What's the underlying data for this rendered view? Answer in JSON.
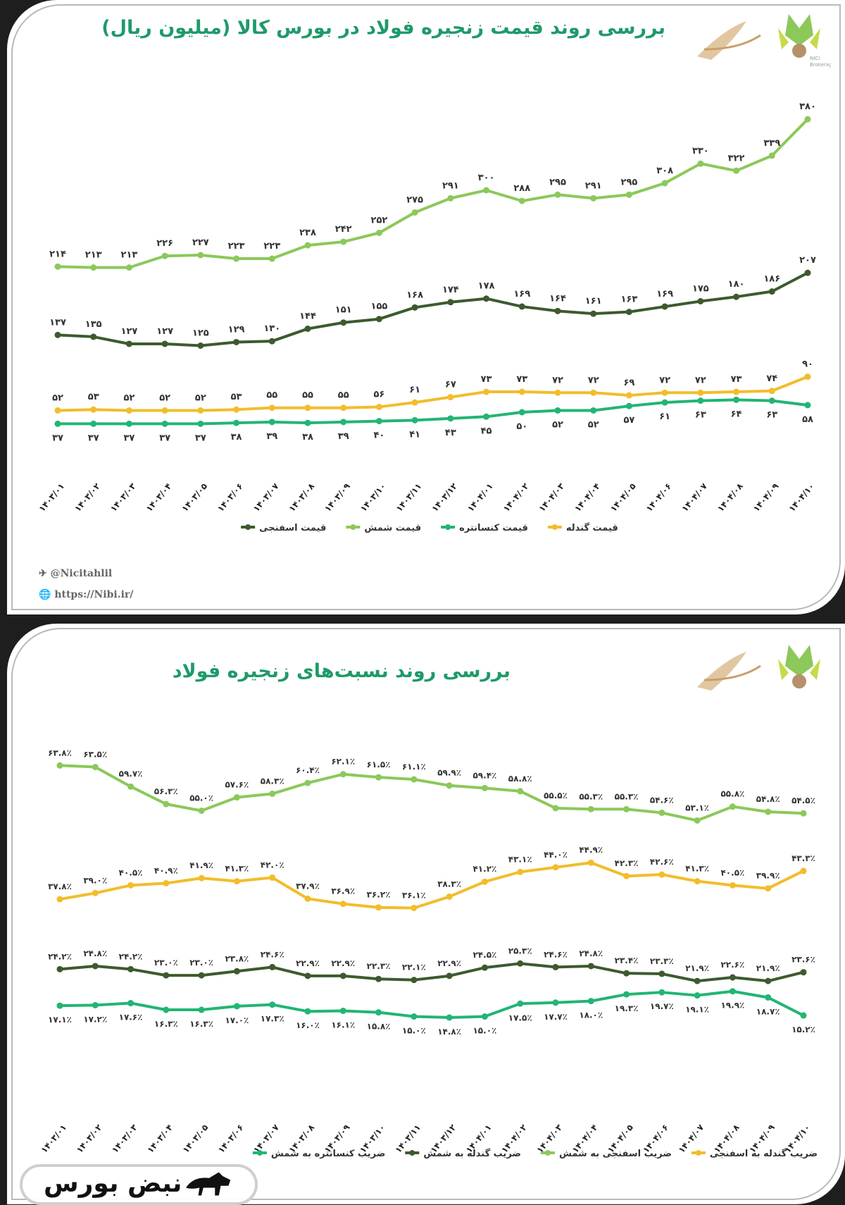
{
  "colors": {
    "title": "#1f9a6a",
    "sponge": "#3d5a2e",
    "billet": "#8cc85a",
    "concentrate": "#22b573",
    "pellet": "#f2bd2c"
  },
  "footer": {
    "telegram": "@Nicitahlil",
    "website": "https://Nibi.ir/"
  },
  "overlay": {
    "brand": "نبض بورس"
  },
  "logo_text": [
    "NICI",
    "Brokerage"
  ],
  "chart_data": [
    {
      "type": "line",
      "title": "بررسی روند قیمت زنجیره فولاد در بورس کالا (میلیون ریال)",
      "categories": [
        "۱۴۰۳/۰۱",
        "۱۴۰۳/۰۲",
        "۱۴۰۳/۰۳",
        "۱۴۰۳/۰۴",
        "۱۴۰۳/۰۵",
        "۱۴۰۳/۰۶",
        "۱۴۰۳/۰۷",
        "۱۴۰۳/۰۸",
        "۱۴۰۳/۰۹",
        "۱۴۰۳/۱۰",
        "۱۴۰۳/۱۱",
        "۱۴۰۳/۱۲",
        "۱۴۰۴/۰۱",
        "۱۴۰۴/۰۲",
        "۱۴۰۴/۰۳",
        "۱۴۰۴/۰۴",
        "۱۴۰۴/۰۵",
        "۱۴۰۴/۰۶",
        "۱۴۰۴/۰۷",
        "۱۴۰۴/۰۸",
        "۱۴۰۴/۰۹",
        "۱۴۰۴/۱۰"
      ],
      "ylim": [
        0,
        380
      ],
      "grid": false,
      "legend_position": "bottom",
      "series": [
        {
          "name": "قیمت شمش",
          "color": "#8cc85a",
          "label_pos": "above",
          "values": [
            214,
            213,
            213,
            226,
            227,
            223,
            223,
            238,
            242,
            252,
            275,
            291,
            300,
            288,
            295,
            291,
            295,
            308,
            330,
            322,
            339,
            380
          ]
        },
        {
          "name": "قیمت اسفنجی",
          "color": "#3d5a2e",
          "label_pos": "above",
          "values": [
            137,
            135,
            127,
            127,
            125,
            129,
            130,
            144,
            151,
            155,
            168,
            174,
            178,
            169,
            164,
            161,
            163,
            169,
            175,
            180,
            186,
            207
          ]
        },
        {
          "name": "قیمت گندله",
          "color": "#f2bd2c",
          "label_pos": "above",
          "values": [
            52,
            53,
            52,
            52,
            52,
            53,
            55,
            55,
            55,
            56,
            61,
            67,
            73,
            73,
            72,
            72,
            69,
            72,
            72,
            73,
            74,
            90
          ]
        },
        {
          "name": "قیمت کنسانتره",
          "color": "#22b573",
          "label_pos": "below",
          "values": [
            37,
            37,
            37,
            37,
            37,
            38,
            39,
            38,
            39,
            40,
            41,
            43,
            45,
            50,
            52,
            52,
            57,
            61,
            63,
            64,
            63,
            58
          ]
        }
      ],
      "legend_order": [
        "قیمت گندله",
        "قیمت کنسانتره",
        "قیمت شمش",
        "قیمت اسفنجی"
      ]
    },
    {
      "type": "line",
      "title": "بررسی روند نسبت‌های زنجیره فولاد",
      "categories": [
        "۱۴۰۳/۰۱",
        "۱۴۰۳/۰۲",
        "۱۴۰۳/۰۳",
        "۱۴۰۳/۰۴",
        "۱۴۰۳/۰۵",
        "۱۴۰۳/۰۶",
        "۱۴۰۳/۰۷",
        "۱۴۰۳/۰۸",
        "۱۴۰۳/۰۹",
        "۱۴۰۳/۱۰",
        "۱۴۰۳/۱۱",
        "۱۴۰۳/۱۲",
        "۱۴۰۴/۰۱",
        "۱۴۰۴/۰۲",
        "۱۴۰۴/۰۳",
        "۱۴۰۴/۰۴",
        "۱۴۰۴/۰۵",
        "۱۴۰۴/۰۶",
        "۱۴۰۴/۰۷",
        "۱۴۰۴/۰۸",
        "۱۴۰۴/۰۹",
        "۱۴۰۴/۱۰"
      ],
      "unit": "%",
      "grid": false,
      "legend_position": "bottom",
      "series": [
        {
          "name": "ضریب اسفنجی به شمش",
          "color": "#8cc85a",
          "label_pos": "above",
          "values": [
            63.8,
            63.5,
            59.7,
            56.3,
            55.0,
            57.6,
            58.3,
            60.4,
            62.1,
            61.5,
            61.1,
            59.9,
            59.4,
            58.8,
            55.5,
            55.3,
            55.3,
            54.6,
            53.1,
            55.8,
            54.8,
            54.5
          ]
        },
        {
          "name": "ضریب گندله به اسفنجی",
          "color": "#f2bd2c",
          "label_pos": "above",
          "values": [
            37.8,
            39.0,
            40.5,
            40.9,
            41.9,
            41.3,
            42.0,
            37.9,
            36.9,
            36.2,
            36.1,
            38.3,
            41.2,
            43.1,
            44.0,
            44.9,
            42.3,
            42.6,
            41.3,
            40.5,
            39.9,
            43.3
          ]
        },
        {
          "name": "ضریب گندله به شمش",
          "color": "#3d5a2e",
          "label_pos": "above",
          "values": [
            24.2,
            24.8,
            24.2,
            23.0,
            23.0,
            23.8,
            24.6,
            22.9,
            22.9,
            22.3,
            22.1,
            22.9,
            24.5,
            25.3,
            24.6,
            24.8,
            23.4,
            23.3,
            21.9,
            22.6,
            21.9,
            23.6
          ]
        },
        {
          "name": "ضریب کنسانتره به شمش",
          "color": "#22b573",
          "label_pos": "below",
          "values": [
            17.1,
            17.2,
            17.6,
            16.3,
            16.3,
            17.0,
            17.3,
            16.0,
            16.1,
            15.8,
            15.0,
            14.8,
            15.0,
            17.5,
            17.7,
            18.0,
            19.3,
            19.7,
            19.1,
            19.9,
            18.7,
            15.2
          ]
        }
      ],
      "legend_order": [
        "ضریب گندله به اسفنجی",
        "ضریب اسفنجی به شمش",
        "ضریب گندله به شمش",
        "ضریب کنسانتره به شمش"
      ]
    }
  ]
}
